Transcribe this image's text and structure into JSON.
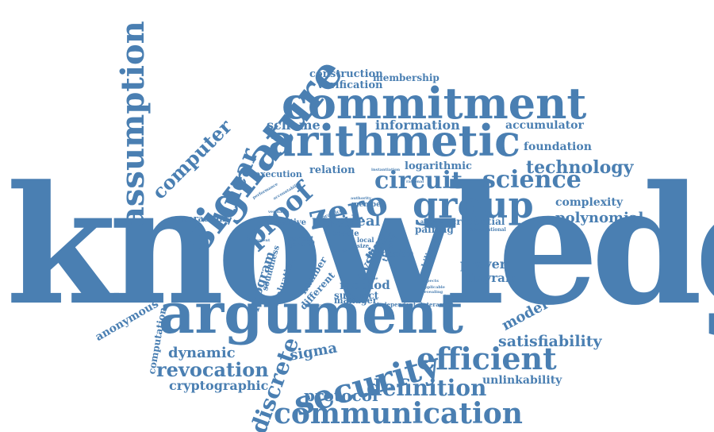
{
  "accent_color": "#4a7fb2",
  "background_color": "#ffffff",
  "words": {
    "knowledge": "knowledge",
    "argument": "argument",
    "commitment": "commitment",
    "arithmetic": "arithmetic",
    "signature": "signature",
    "assumption": "assumption",
    "group": "group",
    "circuit": "circuit",
    "science": "science",
    "zero": "zero",
    "proof": "proof",
    "linear": "linear",
    "computer": "computer",
    "technology": "technology",
    "security": "security",
    "efficient": "efficient",
    "communication": "communication",
    "definition": "definition",
    "discrete": "discrete",
    "revocation": "revocation",
    "satisfiability": "satisfiability",
    "model": "model",
    "protocol": "protocol",
    "cryptographic": "cryptographic",
    "sigma": "sigma",
    "dynamic": "dynamic",
    "unlinkability": "unlinkability",
    "polynomial": "polynomial",
    "complexity": "complexity",
    "foundation": "foundation",
    "accumulator": "accumulator",
    "information": "information",
    "scheme": "scheme",
    "verification": "verification",
    "construction": "construction",
    "membership": "membership",
    "logarithmic": "logarithmic",
    "relation": "relation",
    "execution": "execution",
    "credential": "credential",
    "prover": "prover",
    "tinyram": "tinyram",
    "anonymous": "anonymous",
    "computation": "computation",
    "paradigm": "paradigm",
    "batch": "batch",
    "primitive": "primitive",
    "ideal": "ideal",
    "method": "method",
    "succinct": "succinct",
    "manager": "manager",
    "pairing": "pairing",
    "time": "time",
    "system": "system",
    "program": "program",
    "evaluation": "evaluation",
    "number": "number",
    "different": "different",
    "oracle": "oracle",
    "design": "design",
    "theory": "theory",
    "member": "member",
    "correct": "correct",
    "general": "general",
    "bilinear": "bilinear",
    "practice": "practice",
    "computational": "computational",
    "independent": "independent",
    "interactive": "interactive",
    "interaction": "interaction",
    "local": "local",
    "size": "size",
    "map": "map",
    "soundness": "soundness",
    "performance": "performance",
    "accountability": "accountability",
    "instantiation": "instantiation",
    "abstract": "abstract",
    "statement": "statement",
    "authority": "authority",
    "simple": "simple",
    "applicable": "applicable",
    "revealing": "revealing",
    "aspects": "aspects",
    "important": "important",
    "rational": "rational",
    "verifiable": "verifiable"
  }
}
